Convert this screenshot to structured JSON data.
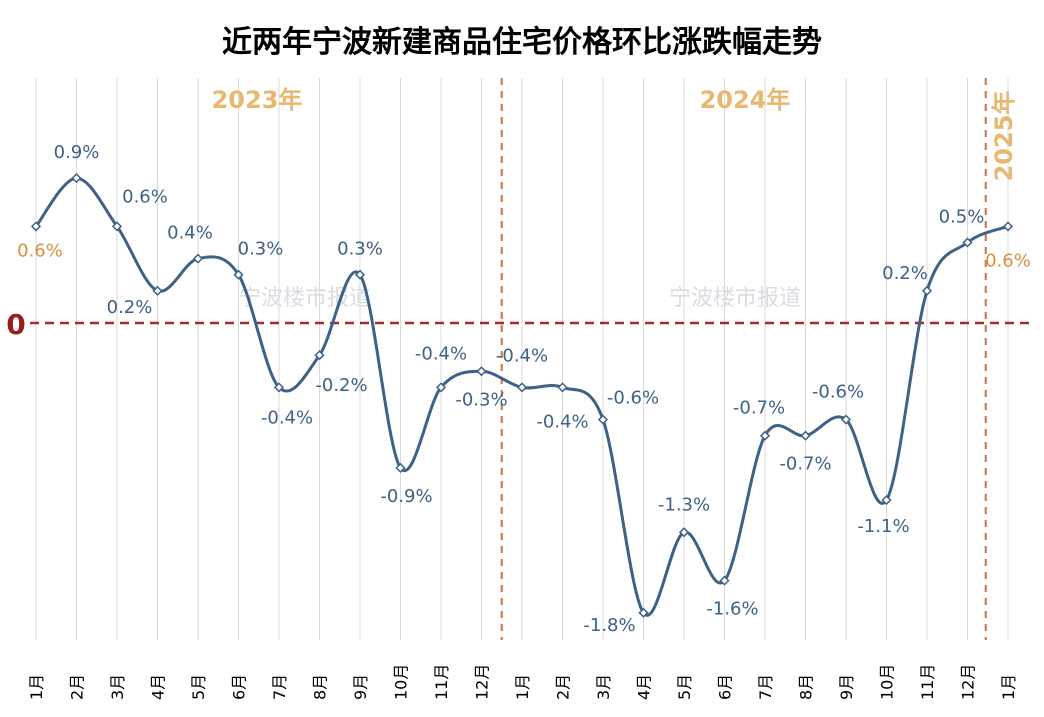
{
  "chart_data": {
    "type": "line",
    "title": "近两年宁波新建商品住宅价格环比涨跌幅走势",
    "categories": [
      "1月",
      "2月",
      "3月",
      "4月",
      "5月",
      "6月",
      "7月",
      "8月",
      "9月",
      "10月",
      "11月",
      "12月",
      "1月",
      "2月",
      "3月",
      "4月",
      "5月",
      "6月",
      "7月",
      "8月",
      "9月",
      "10月",
      "11月",
      "12月",
      "1月"
    ],
    "values": [
      0.6,
      0.9,
      0.6,
      0.2,
      0.4,
      0.3,
      -0.4,
      -0.2,
      0.3,
      -0.9,
      -0.4,
      -0.3,
      -0.4,
      -0.4,
      -0.6,
      -1.8,
      -1.3,
      -1.6,
      -0.7,
      -0.7,
      -0.6,
      -1.1,
      0.2,
      0.5,
      0.6
    ],
    "data_labels": [
      "0.6%",
      "0.9%",
      "0.6%",
      "0.2%",
      "0.4%",
      "0.3%",
      "-0.4%",
      "-0.2%",
      "0.3%",
      "-0.9%",
      "-0.4%",
      "-0.3%",
      "-0.4%",
      "-0.4%",
      "-0.6%",
      "-1.8%",
      "-1.3%",
      "-1.6%",
      "-0.7%",
      "-0.7%",
      "-0.6%",
      "-1.1%",
      "0.2%",
      "0.5%",
      "0.6%"
    ],
    "year_labels": [
      "2023年",
      "2024年",
      "2025年"
    ],
    "zero_label": "0",
    "ylim": [
      -1.95,
      1.2
    ],
    "grid": "vertical",
    "colors": {
      "line": "#3e6187",
      "label": "#3e6187",
      "highlight_label": "#d98f3c",
      "year_label": "#e8b871",
      "zero_line": "#a52a2a",
      "year_divider": "#d07b4f",
      "grid": "#d9d9d9"
    }
  },
  "watermark": "宁波楼市报道"
}
